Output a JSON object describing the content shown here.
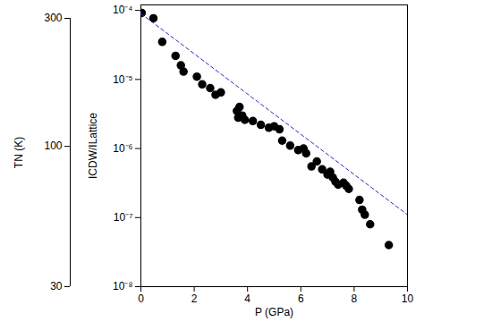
{
  "chart_data": {
    "type": "scatter",
    "xlabel": "P (GPa)",
    "ylabel": "ICDW/ILattice",
    "xlim": [
      0,
      10
    ],
    "xticks": [
      0,
      2,
      4,
      6,
      8,
      10
    ],
    "ylim": [
      1e-08,
      0.00012
    ],
    "yticks": [
      {
        "value": 0.0001,
        "label": "10⁻⁴"
      },
      {
        "value": 1e-05,
        "label": "10⁻⁵"
      },
      {
        "value": 1e-06,
        "label": "10⁻⁶"
      },
      {
        "value": 1e-07,
        "label": "10⁻⁷"
      },
      {
        "value": 1e-08,
        "label": "10⁻⁸"
      }
    ],
    "log": "y",
    "y2label": "TN (K)",
    "y2lim": [
      30,
      300
    ],
    "y2ticks": [
      30,
      100,
      300
    ],
    "series": [
      {
        "type": "scatter",
        "color": "#000000",
        "marker": "circle",
        "x": [
          0.03,
          0.47,
          0.8,
          1.3,
          1.5,
          1.6,
          2.1,
          2.3,
          2.6,
          2.8,
          3.0,
          3.6,
          3.65,
          3.7,
          3.8,
          3.9,
          4.2,
          4.5,
          4.8,
          5.0,
          5.2,
          5.3,
          5.6,
          5.9,
          6.1,
          6.2,
          6.4,
          6.6,
          6.8,
          7.0,
          7.1,
          7.2,
          7.3,
          7.4,
          7.6,
          7.7,
          7.8,
          8.2,
          8.3,
          8.4,
          8.6,
          9.3
        ],
        "values": [
          9.2e-05,
          7.7e-05,
          3.5e-05,
          2.2e-05,
          1.6e-05,
          1.3e-05,
          1.1e-05,
          8.5e-06,
          7.5e-06,
          6e-06,
          6.5e-06,
          3.5e-06,
          2.8e-06,
          4e-06,
          3e-06,
          2.6e-06,
          2.5e-06,
          2.2e-06,
          2e-06,
          2.1e-06,
          1.9e-06,
          1.3e-06,
          1.1e-06,
          9.5e-07,
          1e-06,
          8.5e-07,
          5.5e-07,
          6.5e-07,
          5e-07,
          4.2e-07,
          4.6e-07,
          3.8e-07,
          3.3e-07,
          3e-07,
          3.2e-07,
          2.9e-07,
          2.6e-07,
          1.8e-07,
          1.3e-07,
          1.1e-07,
          8e-08,
          4e-08
        ]
      },
      {
        "type": "line",
        "color": "#2a2ac8",
        "line_style": "dashed",
        "x": [
          0,
          10
        ],
        "values": [
          9e-05,
          1.1e-07
        ]
      }
    ]
  }
}
